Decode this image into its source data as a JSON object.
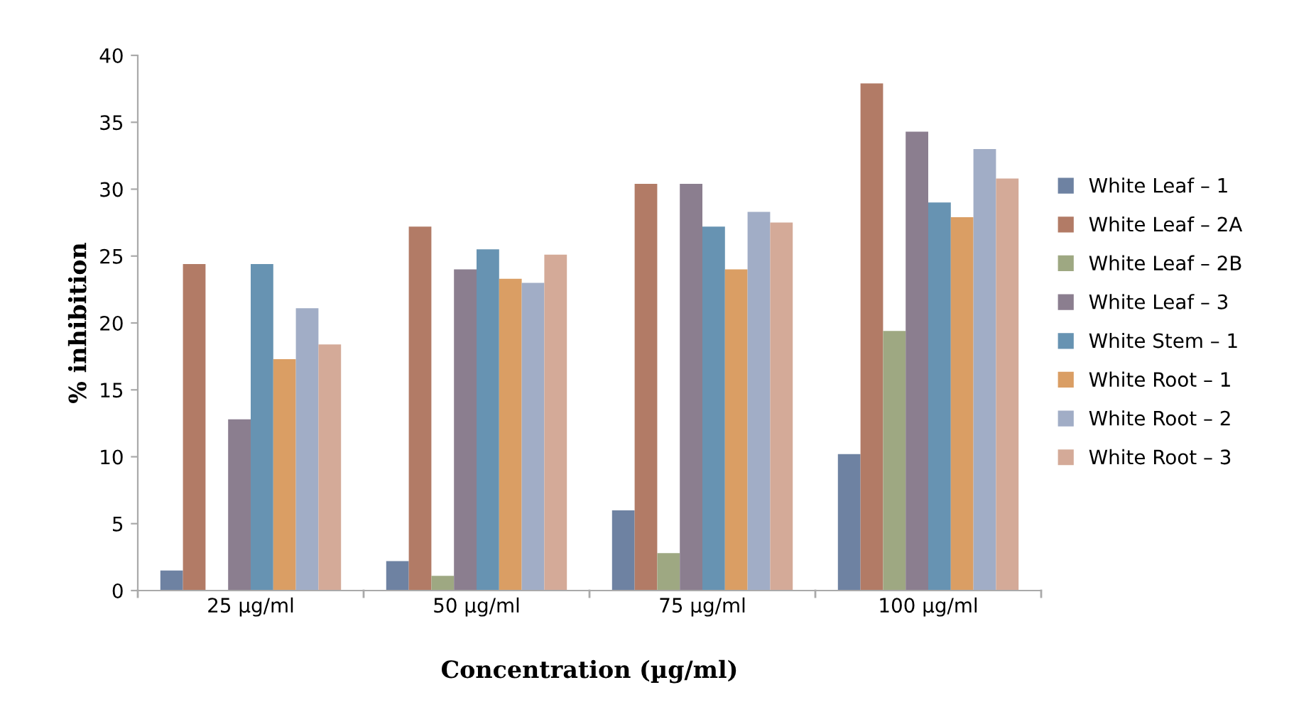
{
  "chart_data": {
    "type": "bar",
    "xlabel": "Concentration (µg/ml)",
    "ylabel": "% inhibition",
    "categories": [
      "25 µg/ml",
      "50 µg/ml",
      "75 µg/ml",
      "100 µg/ml"
    ],
    "ylim": [
      0,
      40
    ],
    "yticks": [
      0,
      5,
      10,
      15,
      20,
      25,
      30,
      35,
      40
    ],
    "grid": false,
    "legend": "right",
    "series": [
      {
        "name": "White Leaf – 1",
        "color": "#6e82a2",
        "values": [
          1.5,
          2.2,
          6.0,
          10.2
        ]
      },
      {
        "name": "White Leaf – 2A",
        "color": "#b27b66",
        "values": [
          24.4,
          27.2,
          30.4,
          37.9
        ]
      },
      {
        "name": "White Leaf – 2B",
        "color": "#9ea882",
        "values": [
          0,
          1.1,
          2.8,
          19.4
        ]
      },
      {
        "name": "White Leaf – 3",
        "color": "#8b7e8f",
        "values": [
          12.8,
          24.0,
          30.4,
          34.3
        ]
      },
      {
        "name": "White Stem – 1",
        "color": "#6793b2",
        "values": [
          24.4,
          25.5,
          27.2,
          29.0
        ]
      },
      {
        "name": "White Root – 1",
        "color": "#da9e64",
        "values": [
          17.3,
          23.3,
          24.0,
          27.9
        ]
      },
      {
        "name": "White Root – 2",
        "color": "#a1adc6",
        "values": [
          21.1,
          23.0,
          28.3,
          33.0
        ]
      },
      {
        "name": "White Root – 3",
        "color": "#d4aa98",
        "values": [
          18.4,
          25.1,
          27.5,
          30.8
        ]
      }
    ]
  }
}
